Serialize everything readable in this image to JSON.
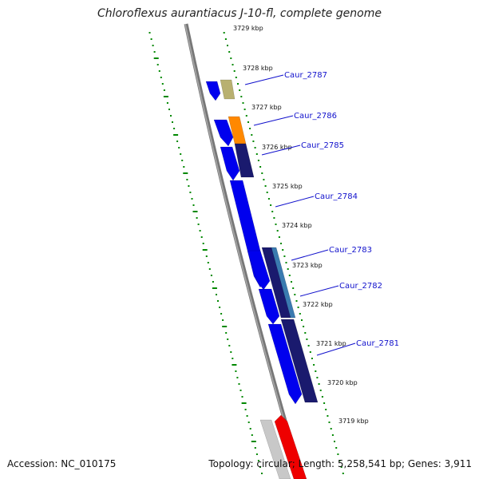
{
  "title": "Chloroflexus aurantiacus J-10-fl, complete genome",
  "footer": {
    "accession": "Accession: NC_010175",
    "summary": "Topology: circular; Length: 5,258,541 bp; Genes: 3,911"
  },
  "scale_ticks": [
    "3729 kbp",
    "3728 kbp",
    "3727 kbp",
    "3726 kbp",
    "3725 kbp",
    "3724 kbp",
    "3723 kbp",
    "3722 kbp",
    "3721 kbp",
    "3720 kbp",
    "3719 kbp"
  ],
  "genes": [
    {
      "label": "Caur_2787"
    },
    {
      "label": "Caur_2786"
    },
    {
      "label": "Caur_2785"
    },
    {
      "label": "Caur_2784"
    },
    {
      "label": "Caur_2783"
    },
    {
      "label": "Caur_2782"
    },
    {
      "label": "Caur_2781"
    }
  ],
  "colors": {
    "backbone": "#777777",
    "dots": "#008800",
    "gene_blue": "#0000ee",
    "gene_navy": "#1a1a6e",
    "gene_teal": "#3a7ab0",
    "gene_orange": "#ff8800",
    "gene_khaki": "#b8b070",
    "gene_grey": "#c8c8c8",
    "gene_red": "#ee0000",
    "label": "#1010cc"
  }
}
